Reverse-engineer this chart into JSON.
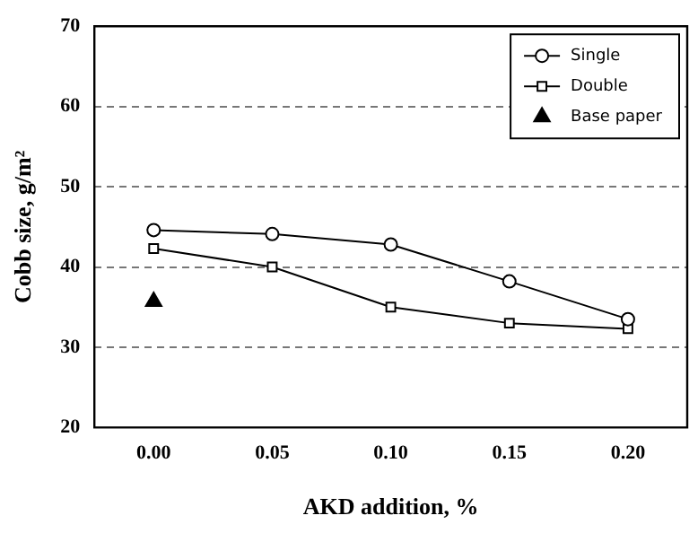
{
  "chart_data": {
    "type": "line",
    "xlabel": "AKD addition, %",
    "ylabel": "Cobb size, g/m²",
    "categories": [
      "0.00",
      "0.05",
      "0.10",
      "0.15",
      "0.20"
    ],
    "series": [
      {
        "name": "Single",
        "color": "#000000",
        "marker": "circle",
        "values": [
          44.6,
          44.1,
          42.8,
          38.2,
          33.5
        ]
      },
      {
        "name": "Double",
        "color": "#000000",
        "marker": "square",
        "values": [
          42.3,
          40.0,
          35.0,
          33.0,
          32.3
        ]
      },
      {
        "name": "Base paper",
        "type": "scatter",
        "color": "#000000",
        "marker": "triangle",
        "values": [
          35.7,
          null,
          null,
          null,
          null
        ]
      }
    ],
    "ylim": [
      20,
      70
    ],
    "yticks": [
      20,
      30,
      40,
      50,
      60,
      70
    ],
    "grid": "y",
    "legend": "top right"
  }
}
